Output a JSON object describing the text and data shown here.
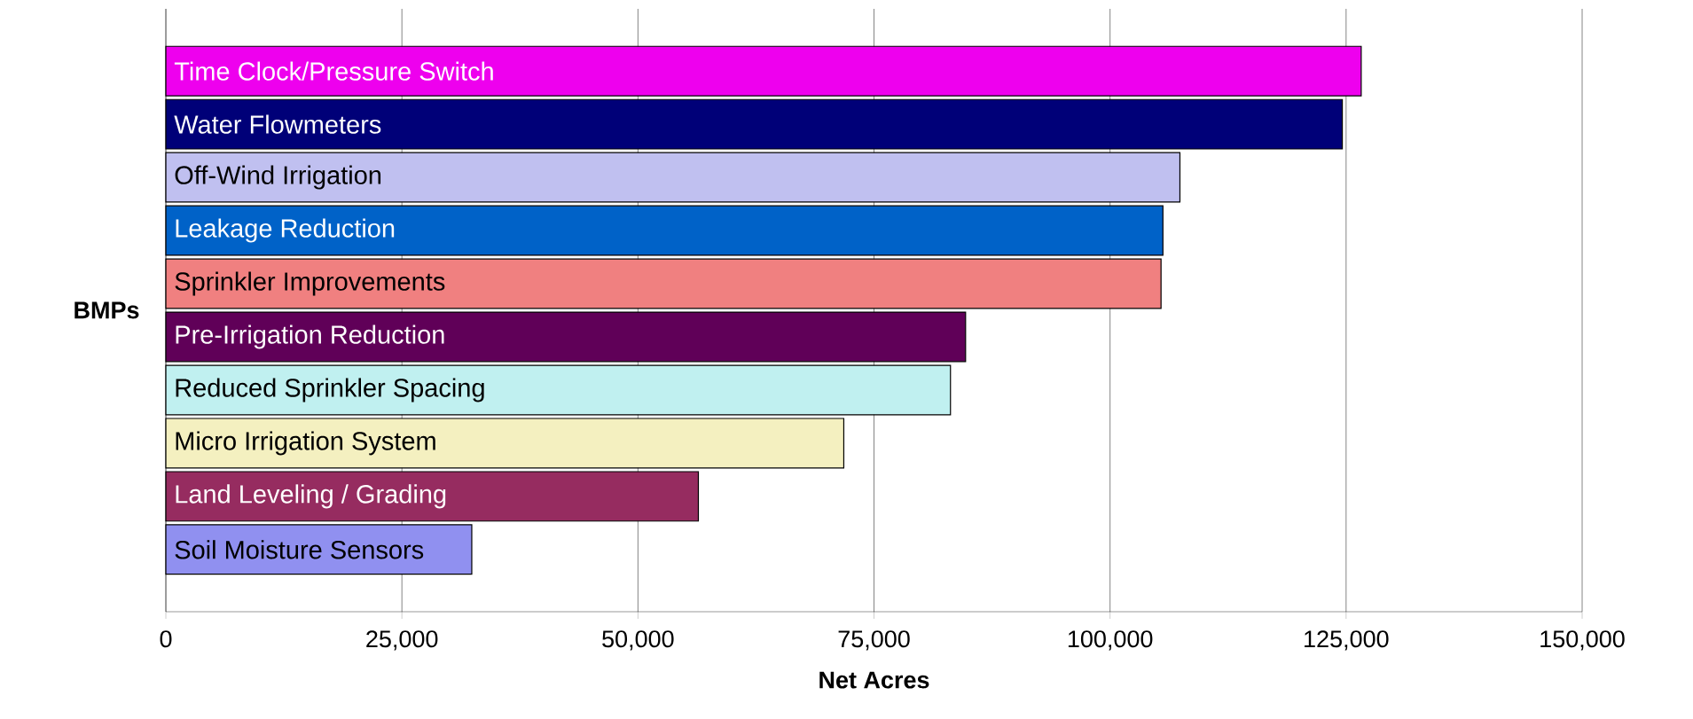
{
  "chart_data": {
    "type": "bar",
    "orientation": "horizontal",
    "xlabel": "Net Acres",
    "ylabel": "BMPs",
    "categories": [
      "Time Clock/Pressure Switch",
      "Water Flowmeters",
      "Off-Wind Irrigation",
      "Leakage Reduction",
      "Sprinkler Improvements",
      "Pre-Irrigation Reduction",
      "Reduced Sprinkler Spacing",
      "Micro Irrigation System",
      "Land Leveling / Grading",
      "Soil Moisture Sensors"
    ],
    "values": [
      126600,
      124600,
      107400,
      105600,
      105400,
      84700,
      83100,
      71800,
      56400,
      32400
    ],
    "colors": [
      "#ee00ee",
      "#000078",
      "#c0c0f0",
      "#0062c8",
      "#f08080",
      "#600058",
      "#c0f0f0",
      "#f4f0c0",
      "#962c60",
      "#9090f0"
    ],
    "xlim": [
      0,
      150000
    ],
    "xticks": [
      0,
      {
        "value": 25000,
        "label": "25,000"
      },
      {
        "value": 50000,
        "label": "50,000"
      },
      {
        "value": 75000,
        "label": "75,000"
      },
      {
        "value": 100000,
        "label": "100,000"
      },
      {
        "value": 125000,
        "label": "125,000"
      },
      {
        "value": 150000,
        "label": "150,000"
      }
    ],
    "grid": "x"
  }
}
